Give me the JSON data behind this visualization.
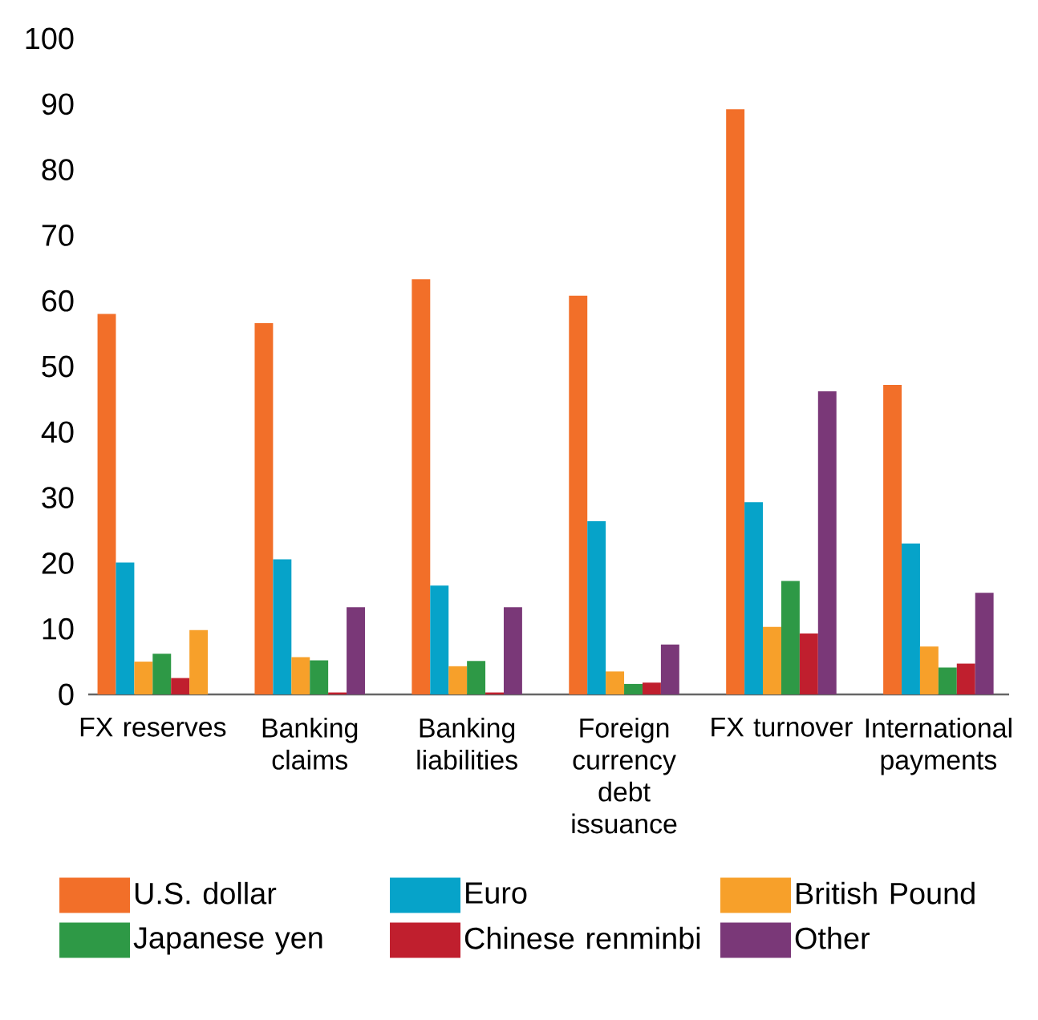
{
  "chart_data": {
    "type": "bar",
    "categories": [
      "FX reserves",
      "Banking claims",
      "Banking liabilities",
      "Foreign currency debt issuance",
      "FX turnover",
      "International payments"
    ],
    "series": [
      {
        "name": "U.S. dollar",
        "color": "#f26f29",
        "values": [
          58.0,
          56.6,
          63.3,
          60.8,
          89.2,
          47.2
        ]
      },
      {
        "name": "Euro",
        "color": "#06a3c9",
        "values": [
          20.1,
          20.6,
          16.6,
          26.4,
          29.3,
          23.0
        ]
      },
      {
        "name": "British Pound",
        "color": "#f7a02a",
        "values": [
          5.0,
          5.7,
          4.3,
          3.5,
          10.3,
          7.3
        ]
      },
      {
        "name": "Japanese yen",
        "color": "#2e9946",
        "values": [
          6.2,
          5.2,
          5.1,
          1.6,
          17.3,
          4.1
        ]
      },
      {
        "name": "Chinese renminbi",
        "color": "#c01f2e",
        "values": [
          2.5,
          0.3,
          0.3,
          1.8,
          9.3,
          4.7
        ]
      },
      {
        "name": "Other",
        "color": "#7a3878",
        "colors": [
          "#f7a02a",
          "#7a3878",
          "#7a3878",
          "#7a3878",
          "#7a3878",
          "#7a3878"
        ],
        "values": [
          9.8,
          13.3,
          13.3,
          7.6,
          46.2,
          15.5
        ]
      }
    ],
    "ylim": [
      0,
      100
    ],
    "yticks": [
      0,
      10,
      20,
      30,
      40,
      50,
      60,
      70,
      80,
      90,
      100
    ],
    "grid": false,
    "legend": "bottom"
  }
}
